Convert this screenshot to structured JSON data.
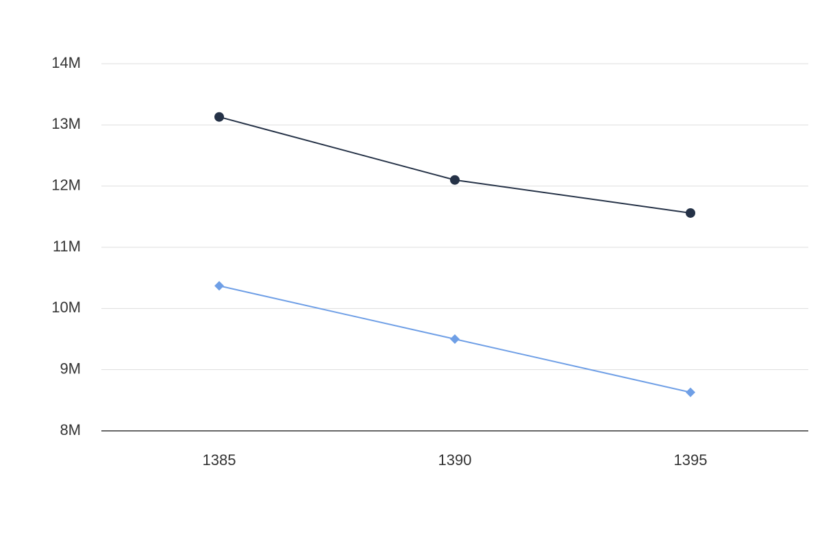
{
  "chart_data": {
    "type": "line",
    "categories": [
      "1385",
      "1390",
      "1395"
    ],
    "series": [
      {
        "color": "#253247",
        "marker": "circle",
        "values": [
          13130000,
          12100000,
          11560000
        ]
      },
      {
        "color": "#6f9fe6",
        "marker": "diamond",
        "values": [
          10370000,
          9500000,
          8630000
        ]
      }
    ],
    "ylim": [
      8000000,
      14000000
    ],
    "yticks": [
      {
        "value": 8000000,
        "label": "8M"
      },
      {
        "value": 9000000,
        "label": "9M"
      },
      {
        "value": 10000000,
        "label": "10M"
      },
      {
        "value": 11000000,
        "label": "11M"
      },
      {
        "value": 12000000,
        "label": "12M"
      },
      {
        "value": 13000000,
        "label": "13M"
      },
      {
        "value": 14000000,
        "label": "14M"
      }
    ],
    "grid": true
  }
}
